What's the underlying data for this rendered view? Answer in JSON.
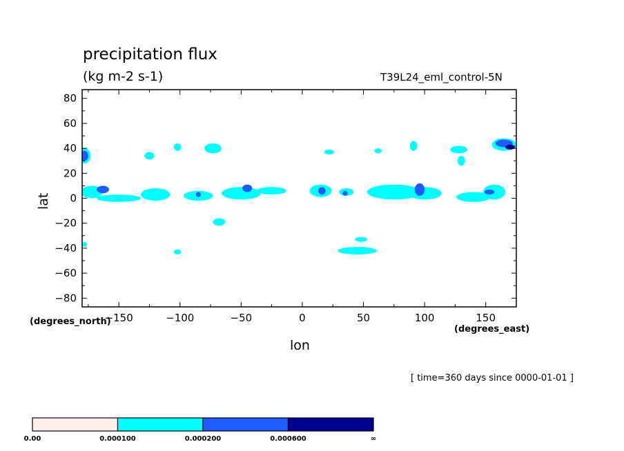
{
  "chart_data": {
    "type": "contour-map",
    "title": "precipitation flux",
    "units": "(kg m-2 s-1)",
    "run_label": "T39L24_eml_control-5N",
    "xlabel": "lon",
    "ylabel": "lat",
    "x_unit": "(degrees_east)",
    "y_unit": "(degrees_north)",
    "time_note": "[ time=360 days since 0000-01-01 ]",
    "xlim": [
      -180,
      175
    ],
    "ylim": [
      -87,
      87
    ],
    "x_ticks": [
      -150,
      -100,
      -50,
      0,
      50,
      100,
      150
    ],
    "y_ticks": [
      80,
      60,
      40,
      20,
      0,
      -20,
      -40,
      -60,
      -80
    ],
    "levels": [
      {
        "label": "0.00",
        "color": "#fff0ec"
      },
      {
        "label": "0.000100",
        "color": "#00ffff"
      },
      {
        "label": "0.000200",
        "color": "#1e5cff"
      },
      {
        "label": "0.000600",
        "color": "#000090"
      }
    ],
    "levels_end_label": "∞",
    "regions": [
      {
        "level": 1,
        "lon": -172,
        "lat": 5,
        "rx": 9,
        "ry": 5
      },
      {
        "level": 1,
        "lon": -150,
        "lat": 0,
        "rx": 18,
        "ry": 3
      },
      {
        "level": 1,
        "lon": -120,
        "lat": 3,
        "rx": 12,
        "ry": 5
      },
      {
        "level": 1,
        "lon": -85,
        "lat": 2,
        "rx": 12,
        "ry": 4
      },
      {
        "level": 1,
        "lon": -50,
        "lat": 4,
        "rx": 16,
        "ry": 5
      },
      {
        "level": 1,
        "lon": -25,
        "lat": 6,
        "rx": 12,
        "ry": 3
      },
      {
        "level": 1,
        "lon": 15,
        "lat": 6,
        "rx": 9,
        "ry": 5
      },
      {
        "level": 1,
        "lon": 36,
        "lat": 5,
        "rx": 6,
        "ry": 3
      },
      {
        "level": 1,
        "lon": 75,
        "lat": 5,
        "rx": 22,
        "ry": 6
      },
      {
        "level": 1,
        "lon": 100,
        "lat": 4,
        "rx": 14,
        "ry": 5
      },
      {
        "level": 1,
        "lon": 140,
        "lat": 1,
        "rx": 14,
        "ry": 4
      },
      {
        "level": 1,
        "lon": 157,
        "lat": 5,
        "rx": 9,
        "ry": 6
      },
      {
        "level": 1,
        "lon": 165,
        "lat": 43,
        "rx": 10,
        "ry": 5
      },
      {
        "level": 1,
        "lon": -178,
        "lat": 34,
        "rx": 5,
        "ry": 6
      },
      {
        "level": 1,
        "lon": -73,
        "lat": 40,
        "rx": 7,
        "ry": 4
      },
      {
        "level": 1,
        "lon": -125,
        "lat": 34,
        "rx": 4,
        "ry": 3
      },
      {
        "level": 1,
        "lon": -102,
        "lat": 41,
        "rx": 3,
        "ry": 3
      },
      {
        "level": 1,
        "lon": 22,
        "lat": 37,
        "rx": 4,
        "ry": 2
      },
      {
        "level": 1,
        "lon": 62,
        "lat": 38,
        "rx": 3,
        "ry": 2
      },
      {
        "level": 1,
        "lon": 91,
        "lat": 42,
        "rx": 3,
        "ry": 4
      },
      {
        "level": 1,
        "lon": 128,
        "lat": 39,
        "rx": 7,
        "ry": 3
      },
      {
        "level": 1,
        "lon": 130,
        "lat": 30,
        "rx": 3,
        "ry": 4
      },
      {
        "level": 1,
        "lon": -68,
        "lat": -19,
        "rx": 5,
        "ry": 3
      },
      {
        "level": 1,
        "lon": -102,
        "lat": -43,
        "rx": 3,
        "ry": 2
      },
      {
        "level": 1,
        "lon": 45,
        "lat": -42,
        "rx": 16,
        "ry": 3
      },
      {
        "level": 1,
        "lon": 48,
        "lat": -33,
        "rx": 5,
        "ry": 2
      },
      {
        "level": 1,
        "lon": -178,
        "lat": -37,
        "rx": 2,
        "ry": 2
      },
      {
        "level": 2,
        "lon": -178,
        "lat": 34,
        "rx": 3,
        "ry": 4
      },
      {
        "level": 2,
        "lon": -163,
        "lat": 7,
        "rx": 5,
        "ry": 3
      },
      {
        "level": 2,
        "lon": -45,
        "lat": 8,
        "rx": 4,
        "ry": 3
      },
      {
        "level": 2,
        "lon": 16,
        "lat": 6,
        "rx": 3,
        "ry": 3
      },
      {
        "level": 2,
        "lon": 96,
        "lat": 7,
        "rx": 4,
        "ry": 5
      },
      {
        "level": 2,
        "lon": -85,
        "lat": 3,
        "rx": 2,
        "ry": 2
      },
      {
        "level": 2,
        "lon": 165,
        "lat": 44,
        "rx": 7,
        "ry": 3
      },
      {
        "level": 2,
        "lon": 153,
        "lat": 5,
        "rx": 4,
        "ry": 2
      },
      {
        "level": 2,
        "lon": 35,
        "lat": 4,
        "rx": 2,
        "ry": 2
      },
      {
        "level": 3,
        "lon": 170,
        "lat": 41,
        "rx": 4,
        "ry": 2
      }
    ]
  }
}
